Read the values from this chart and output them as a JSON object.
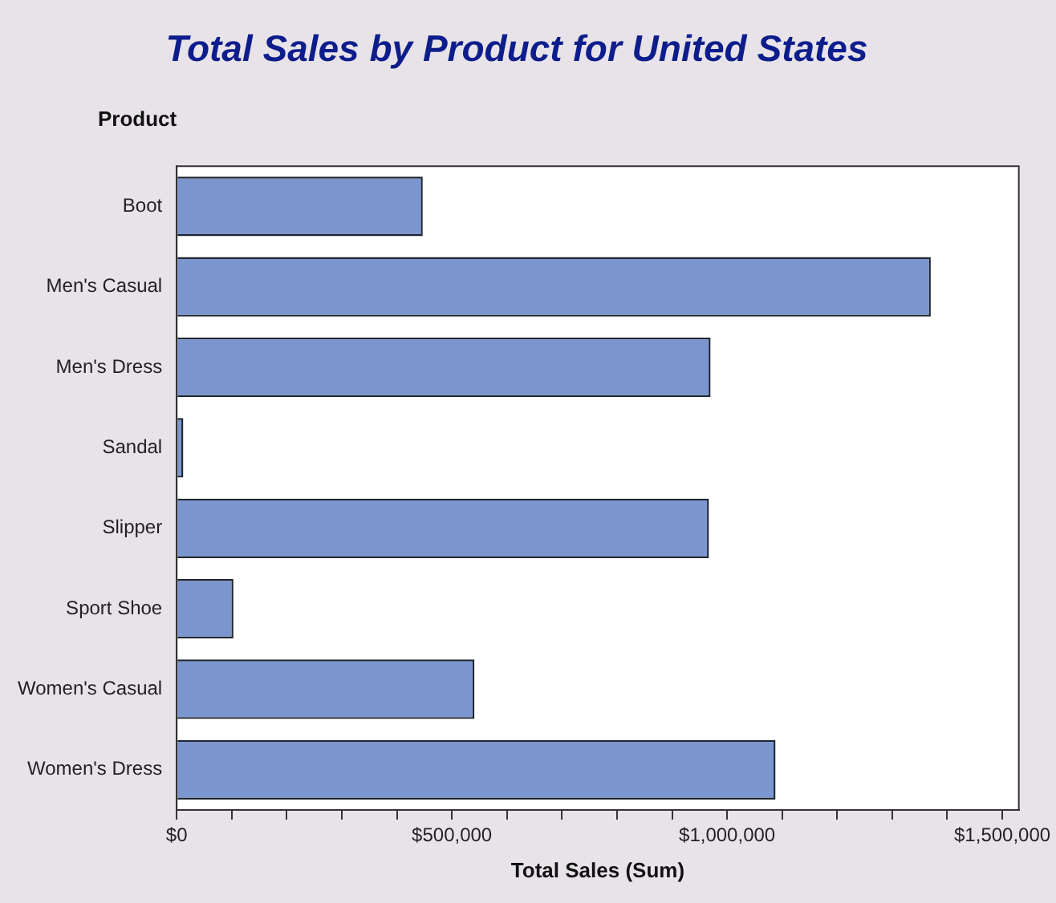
{
  "chart_data": {
    "type": "bar",
    "orientation": "horizontal",
    "title": "Total Sales by Product for United States",
    "xlabel": "Total Sales (Sum)",
    "ylabel": "Product",
    "categories": [
      "Boot",
      "Men's Casual",
      "Men's Dress",
      "Sandal",
      "Slipper",
      "Sport Shoe",
      "Women's Casual",
      "Women's Dress"
    ],
    "values": [
      447000,
      1370000,
      970000,
      12000,
      967000,
      103000,
      541000,
      1088000
    ],
    "color": "#7b96cf",
    "xlim": [
      0,
      1530000
    ],
    "xticks": [
      {
        "value": 0,
        "label": "$0"
      },
      {
        "value": 100000,
        "label": null
      },
      {
        "value": 200000,
        "label": null
      },
      {
        "value": 300000,
        "label": null
      },
      {
        "value": 400000,
        "label": null
      },
      {
        "value": 500000,
        "label": "$500,000"
      },
      {
        "value": 600000,
        "label": null
      },
      {
        "value": 700000,
        "label": null
      },
      {
        "value": 800000,
        "label": null
      },
      {
        "value": 900000,
        "label": null
      },
      {
        "value": 1000000,
        "label": "$1,000,000"
      },
      {
        "value": 1100000,
        "label": null
      },
      {
        "value": 1200000,
        "label": null
      },
      {
        "value": 1300000,
        "label": null
      },
      {
        "value": 1400000,
        "label": null
      },
      {
        "value": 1500000,
        "label": "$1,500,000"
      }
    ],
    "grid": false,
    "legend": false
  }
}
